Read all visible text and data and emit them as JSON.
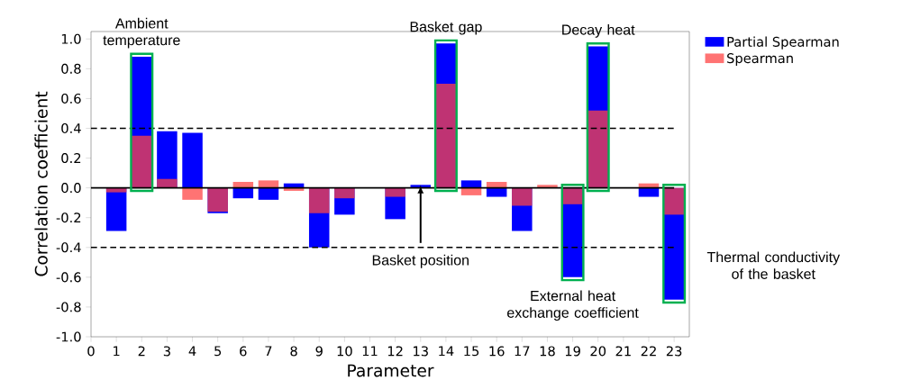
{
  "chart_data": {
    "type": "bar",
    "xlabel": "Parameter",
    "ylabel": "Correlation coefficient",
    "x": [
      1,
      2,
      3,
      4,
      5,
      6,
      7,
      8,
      9,
      10,
      11,
      12,
      13,
      14,
      15,
      16,
      17,
      18,
      19,
      20,
      21,
      22,
      23
    ],
    "series": [
      {
        "name": "Partial Spearman",
        "color": "#0000ff",
        "values": [
          -0.29,
          0.88,
          0.38,
          0.37,
          -0.17,
          -0.07,
          -0.08,
          0.03,
          -0.4,
          -0.18,
          0,
          -0.21,
          0.02,
          0.97,
          0.05,
          -0.06,
          -0.29,
          null,
          -0.6,
          0.95,
          0,
          -0.06,
          -0.75
        ]
      },
      {
        "name": "Spearman",
        "color": "#ff4444",
        "values": [
          -0.03,
          0.35,
          0.06,
          -0.08,
          -0.16,
          0.04,
          0.05,
          -0.02,
          -0.17,
          -0.07,
          0,
          -0.06,
          0,
          0.7,
          -0.05,
          0.04,
          -0.12,
          0.02,
          -0.11,
          0.52,
          0,
          0.03,
          -0.18
        ]
      }
    ],
    "xlim": [
      0,
      23.6
    ],
    "xticks": [
      0,
      1,
      2,
      3,
      4,
      5,
      6,
      7,
      8,
      9,
      10,
      11,
      12,
      13,
      14,
      15,
      16,
      17,
      18,
      19,
      20,
      21,
      22,
      23
    ],
    "ylim": [
      -1.0,
      1.05
    ],
    "yticks": [
      {
        "value": -1.0,
        "label": "-1.0"
      },
      {
        "value": -0.8,
        "label": "-0.8"
      },
      {
        "value": -0.6,
        "label": "-0.6"
      },
      {
        "value": -0.4,
        "label": "-0.4"
      },
      {
        "value": -0.2,
        "label": "-0.2"
      },
      {
        "value": 0,
        "label": "0.0"
      },
      {
        "value": 0.2,
        "label": "0.2"
      },
      {
        "value": 0.4,
        "label": "0.4"
      },
      {
        "value": 0.6,
        "label": "0.6"
      },
      {
        "value": 0.8,
        "label": "0.8"
      },
      {
        "value": 1.0,
        "label": "1.0"
      }
    ],
    "ref_lines": [
      {
        "axis": "y",
        "value": 0.4,
        "color": "#000000",
        "line_style": "dashed"
      },
      {
        "axis": "y",
        "value": -0.4,
        "color": "#000000",
        "line_style": "dashed"
      },
      {
        "axis": "y",
        "value": 0,
        "color": "#000000",
        "line_style": "solid"
      }
    ],
    "annotations": [
      {
        "text": "Ambient temperature",
        "x": 2,
        "y": 0.88
      },
      {
        "text": "Basket position",
        "x": 13,
        "y": 0.02
      },
      {
        "text": "Basket gap",
        "x": 14,
        "y": 0.97
      },
      {
        "text": "Decay heat",
        "x": 20,
        "y": 0.95
      },
      {
        "text": "External heat exchange coefficient",
        "x": 19,
        "y": -0.6
      },
      {
        "text": "Thermal conductivity of the basket",
        "x": 23,
        "y": -0.75
      }
    ],
    "legend": "top right",
    "grid": false
  }
}
